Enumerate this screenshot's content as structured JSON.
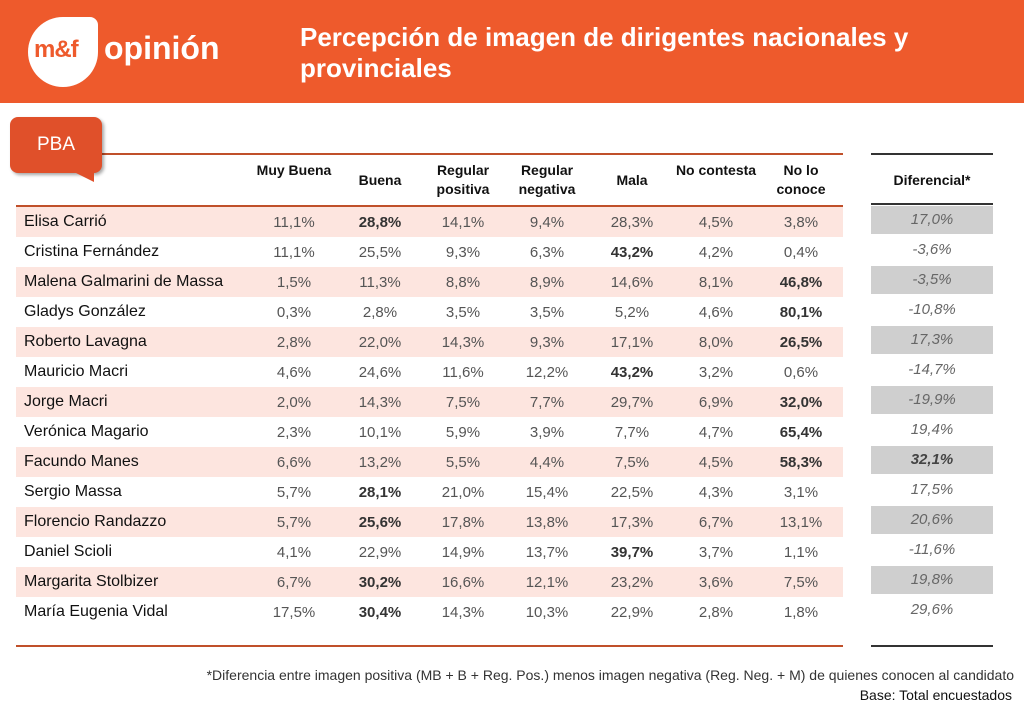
{
  "brand": {
    "mark": "m&f",
    "word": "opinión"
  },
  "title": "Percepción de imagen de dirigentes nacionales y provinciales",
  "tab_label": "PBA",
  "columns": [
    "Muy Buena",
    "Buena",
    "Regular positiva",
    "Regular negativa",
    "Mala",
    "No contesta",
    "No lo conoce"
  ],
  "diff_header": "Diferencial*",
  "rows": [
    {
      "name": "Elisa Carrió",
      "values": [
        "11,1%",
        "28,8%",
        "14,1%",
        "9,4%",
        "28,3%",
        "4,5%",
        "3,8%"
      ],
      "bold": [
        1
      ],
      "diff": "17,0%",
      "diff_shaded": true
    },
    {
      "name": "Cristina Fernández",
      "values": [
        "11,1%",
        "25,5%",
        "9,3%",
        "6,3%",
        "43,2%",
        "4,2%",
        "0,4%"
      ],
      "bold": [
        4
      ],
      "diff": "-3,6%",
      "diff_shaded": false
    },
    {
      "name": "Malena Galmarini de Massa",
      "values": [
        "1,5%",
        "11,3%",
        "8,8%",
        "8,9%",
        "14,6%",
        "8,1%",
        "46,8%"
      ],
      "bold": [
        6
      ],
      "diff": "-3,5%",
      "diff_shaded": true
    },
    {
      "name": "Gladys González",
      "values": [
        "0,3%",
        "2,8%",
        "3,5%",
        "3,5%",
        "5,2%",
        "4,6%",
        "80,1%"
      ],
      "bold": [
        6
      ],
      "diff": "-10,8%",
      "diff_shaded": false
    },
    {
      "name": "Roberto Lavagna",
      "values": [
        "2,8%",
        "22,0%",
        "14,3%",
        "9,3%",
        "17,1%",
        "8,0%",
        "26,5%"
      ],
      "bold": [
        6
      ],
      "diff": "17,3%",
      "diff_shaded": true
    },
    {
      "name": "Mauricio Macri",
      "values": [
        "4,6%",
        "24,6%",
        "11,6%",
        "12,2%",
        "43,2%",
        "3,2%",
        "0,6%"
      ],
      "bold": [
        4
      ],
      "diff": "-14,7%",
      "diff_shaded": false
    },
    {
      "name": "Jorge Macri",
      "values": [
        "2,0%",
        "14,3%",
        "7,5%",
        "7,7%",
        "29,7%",
        "6,9%",
        "32,0%"
      ],
      "bold": [
        6
      ],
      "diff": "-19,9%",
      "diff_shaded": true
    },
    {
      "name": "Verónica Magario",
      "values": [
        "2,3%",
        "10,1%",
        "5,9%",
        "3,9%",
        "7,7%",
        "4,7%",
        "65,4%"
      ],
      "bold": [
        6
      ],
      "diff": "19,4%",
      "diff_shaded": false
    },
    {
      "name": "Facundo Manes",
      "values": [
        "6,6%",
        "13,2%",
        "5,5%",
        "4,4%",
        "7,5%",
        "4,5%",
        "58,3%"
      ],
      "bold": [
        6
      ],
      "diff": "32,1%",
      "diff_shaded": true,
      "diff_bold": true
    },
    {
      "name": "Sergio Massa",
      "values": [
        "5,7%",
        "28,1%",
        "21,0%",
        "15,4%",
        "22,5%",
        "4,3%",
        "3,1%"
      ],
      "bold": [
        1
      ],
      "diff": "17,5%",
      "diff_shaded": false
    },
    {
      "name": "Florencio Randazzo",
      "values": [
        "5,7%",
        "25,6%",
        "17,8%",
        "13,8%",
        "17,3%",
        "6,7%",
        "13,1%"
      ],
      "bold": [
        1
      ],
      "diff": "20,6%",
      "diff_shaded": true
    },
    {
      "name": "Daniel Scioli",
      "values": [
        "4,1%",
        "22,9%",
        "14,9%",
        "13,7%",
        "39,7%",
        "3,7%",
        "1,1%"
      ],
      "bold": [
        4
      ],
      "diff": "-11,6%",
      "diff_shaded": false
    },
    {
      "name": "Margarita Stolbizer",
      "values": [
        "6,7%",
        "30,2%",
        "16,6%",
        "12,1%",
        "23,2%",
        "3,6%",
        "7,5%"
      ],
      "bold": [
        1
      ],
      "diff": "19,8%",
      "diff_shaded": true
    },
    {
      "name": "María Eugenia Vidal",
      "values": [
        "17,5%",
        "30,4%",
        "14,3%",
        "10,3%",
        "22,9%",
        "2,8%",
        "1,8%"
      ],
      "bold": [
        1
      ],
      "diff": "29,6%",
      "diff_shaded": false
    }
  ],
  "footnote": "*Diferencia entre imagen positiva (MB + B + Reg. Pos.) menos imagen negativa (Reg. Neg. + M) de quienes conocen al candidato",
  "base": "Base: Total encuestados",
  "colors": {
    "header": "#ee5a2c",
    "row_alt": "#fde5df",
    "diff_shade": "#cfcfcf",
    "rule": "#c0502a"
  }
}
